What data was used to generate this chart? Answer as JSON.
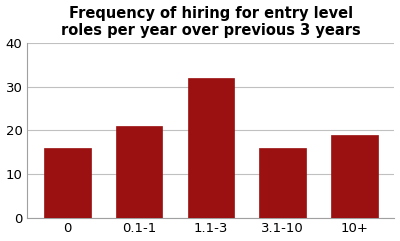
{
  "categories": [
    "0",
    "0.1-1",
    "1.1-3",
    "3.1-10",
    "10+"
  ],
  "values": [
    16,
    21,
    32,
    16,
    19
  ],
  "bar_color": "#9B1010",
  "title_line1": "Frequency of hiring for entry level",
  "title_line2": "roles per year over previous 3 years",
  "ylim": [
    0,
    40
  ],
  "yticks": [
    0,
    10,
    20,
    30,
    40
  ],
  "title_fontsize": 10.5,
  "tick_fontsize": 9.5,
  "background_color": "#ffffff",
  "grid_color": "#c0c0c0",
  "edge_color": "#9B1010"
}
